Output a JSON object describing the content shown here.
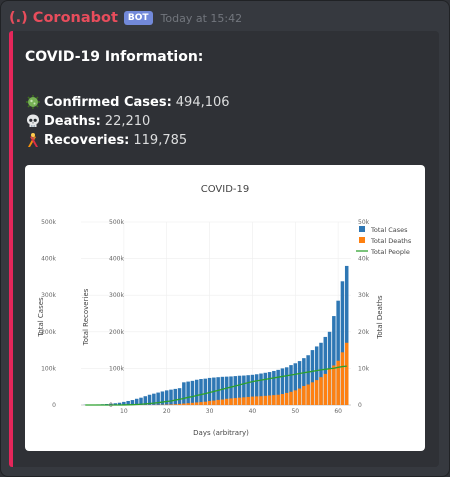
{
  "message": {
    "username": "(.) Coronabot",
    "bot_tag": "BOT",
    "timestamp": "Today at 15:42"
  },
  "embed": {
    "title": "COVID-19 Information:",
    "accent_color": "#e5265a",
    "stats": [
      {
        "icon": "virus-icon",
        "label": "Confirmed Cases:",
        "value": "494,106"
      },
      {
        "icon": "skull-icon",
        "label": "Deaths:",
        "value": "22,210"
      },
      {
        "icon": "recovery-icon",
        "label": "Recoveries:",
        "value": "119,785"
      }
    ]
  },
  "chart_data": {
    "type": "bar",
    "title": "COVID-19",
    "xlabel": "Days (arbitrary)",
    "ylabel_cases": "Total Cases",
    "ylabel_recoveries": "Total Recoveries",
    "ylabel_deaths": "Total Deaths",
    "x_ticks": [
      "10",
      "20",
      "30",
      "40",
      "50",
      "60"
    ],
    "y_ticks": [
      "0",
      "100k",
      "200k",
      "300k",
      "400k",
      "500k"
    ],
    "y_ticks_right": [
      "0",
      "10k",
      "20k",
      "30k",
      "40k",
      "50k"
    ],
    "xlim": [
      0,
      63
    ],
    "ylim": [
      0,
      500000
    ],
    "legend_position": "top-right",
    "series": [
      {
        "name": "Total Cases",
        "color": "#2e77b4"
      },
      {
        "name": "Total Deaths",
        "color": "#fe8011"
      },
      {
        "name": "Total People",
        "color": "#2ca02c"
      }
    ],
    "days": [
      1,
      2,
      3,
      4,
      5,
      6,
      7,
      8,
      9,
      10,
      11,
      12,
      13,
      14,
      15,
      16,
      17,
      18,
      19,
      20,
      21,
      22,
      23,
      24,
      25,
      26,
      27,
      28,
      29,
      30,
      31,
      32,
      33,
      34,
      35,
      36,
      37,
      38,
      39,
      40,
      41,
      42,
      43,
      44,
      45,
      46,
      47,
      48,
      49,
      50,
      51,
      52,
      53,
      54,
      55,
      56,
      57,
      58,
      59,
      60,
      61,
      62
    ],
    "total_cases": [
      600,
      800,
      1100,
      1500,
      2000,
      2700,
      3500,
      4800,
      6200,
      8500,
      11000,
      13500,
      17000,
      20000,
      24000,
      28000,
      31000,
      34000,
      37000,
      40000,
      42000,
      44000,
      46000,
      62000,
      64000,
      66000,
      69000,
      71000,
      72000,
      74000,
      75000,
      76000,
      77000,
      77500,
      78000,
      79000,
      80000,
      80500,
      81500,
      82500,
      84000,
      86000,
      88000,
      90000,
      93000,
      96000,
      100000,
      103000,
      109000,
      114000,
      120000,
      128000,
      136000,
      150000,
      160000,
      170000,
      186000,
      200000,
      243000,
      285000,
      338000,
      380000
    ],
    "total_deaths": [
      1,
      1,
      2,
      2,
      3,
      4,
      5,
      6,
      8,
      10,
      12,
      15,
      18,
      22,
      25,
      30,
      40,
      55,
      80,
      110,
      150,
      210,
      300,
      400,
      500,
      600,
      700,
      800,
      900,
      1100,
      1200,
      1400,
      1500,
      1700,
      1800,
      1900,
      2000,
      2100,
      2200,
      2300,
      2350,
      2400,
      2500,
      2600,
      2700,
      2800,
      3000,
      3300,
      3600,
      4000,
      4500,
      5200,
      5600,
      6200,
      6800,
      7600,
      8500,
      9800,
      10800,
      12100,
      14400,
      17000
    ],
    "total_recoveries": [
      0,
      0,
      0,
      0,
      0,
      0,
      0,
      0,
      100,
      200,
      500,
      900,
      1400,
      2100,
      3000,
      4000,
      5200,
      6400,
      8000,
      9500,
      11000,
      13500,
      15500,
      18000,
      21000,
      23000,
      26000,
      28500,
      31000,
      34000,
      37000,
      40000,
      43000,
      46000,
      49000,
      52000,
      55000,
      58000,
      61000,
      64000,
      66000,
      68000,
      70000,
      72000,
      74000,
      76000,
      78000,
      80000,
      82000,
      84000,
      86000,
      88000,
      90000,
      92000,
      94000,
      96000,
      97500,
      99000,
      100500,
      103000,
      105000,
      106000
    ]
  }
}
